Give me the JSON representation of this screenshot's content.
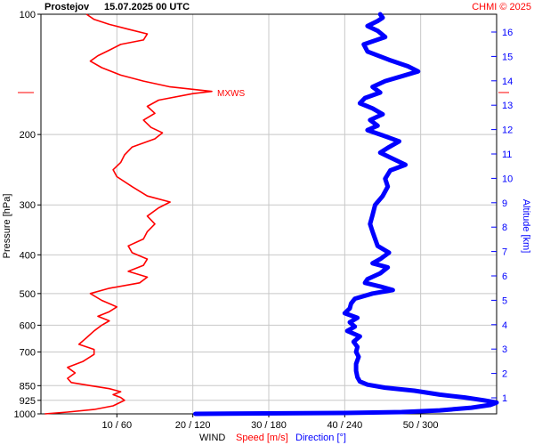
{
  "header": {
    "station": "Prostejov",
    "datetime": "15.07.2025 00 UTC",
    "credit": "CHMI © 2025"
  },
  "colors": {
    "speed": "#ff0000",
    "direction": "#0000ff",
    "grid": "#c8c8c8",
    "altitude_axis": "#0000ff"
  },
  "chart_data": {
    "type": "line",
    "grid": true,
    "y_axis": {
      "label": "Pressure [hPa]",
      "scale": "log",
      "range": [
        1000,
        100
      ],
      "ticks": [
        1000,
        925,
        850,
        700,
        600,
        500,
        400,
        300,
        200,
        100
      ]
    },
    "y2_axis": {
      "label": "Altitude [km]",
      "ticks": [
        1,
        2,
        3,
        4,
        5,
        6,
        7,
        8,
        9,
        10,
        11,
        12,
        13,
        14,
        15,
        16
      ]
    },
    "x_axis": {
      "title": "WIND",
      "speed_label": "Speed [m/s]",
      "direction_label": "Direction [°]",
      "speed_range": [
        0,
        60
      ],
      "direction_range": [
        0,
        360
      ],
      "tick_labels": [
        "10 / 60",
        "20 / 120",
        "30 / 180",
        "40 / 240",
        "50 / 300"
      ]
    },
    "annotations": [
      {
        "text": "MXWS",
        "pressure": 157,
        "speed": 22.5
      }
    ],
    "series": [
      {
        "name": "Speed [m/s]",
        "color": "#ff0000",
        "points": [
          [
            1000,
            0.5
          ],
          [
            990,
            3.5
          ],
          [
            975,
            7
          ],
          [
            955,
            9.5
          ],
          [
            935,
            10.5
          ],
          [
            925,
            11
          ],
          [
            910,
            10.5
          ],
          [
            895,
            9.5
          ],
          [
            880,
            10.5
          ],
          [
            865,
            9
          ],
          [
            850,
            6.5
          ],
          [
            835,
            4
          ],
          [
            815,
            3.5
          ],
          [
            790,
            4.5
          ],
          [
            765,
            3.5
          ],
          [
            740,
            5.5
          ],
          [
            710,
            7
          ],
          [
            690,
            7
          ],
          [
            670,
            5
          ],
          [
            645,
            6
          ],
          [
            620,
            7
          ],
          [
            600,
            8
          ],
          [
            585,
            9
          ],
          [
            570,
            7.5
          ],
          [
            555,
            9
          ],
          [
            540,
            10
          ],
          [
            520,
            8
          ],
          [
            500,
            6.5
          ],
          [
            485,
            9
          ],
          [
            470,
            13
          ],
          [
            455,
            14
          ],
          [
            440,
            11.5
          ],
          [
            425,
            13.5
          ],
          [
            410,
            14
          ],
          [
            395,
            12
          ],
          [
            380,
            11.5
          ],
          [
            365,
            13.5
          ],
          [
            350,
            14
          ],
          [
            335,
            15
          ],
          [
            320,
            14
          ],
          [
            305,
            15.5
          ],
          [
            295,
            17
          ],
          [
            285,
            14
          ],
          [
            270,
            12
          ],
          [
            255,
            10
          ],
          [
            245,
            9.5
          ],
          [
            235,
            10.5
          ],
          [
            225,
            11
          ],
          [
            215,
            12
          ],
          [
            205,
            15
          ],
          [
            198,
            16
          ],
          [
            192,
            14.5
          ],
          [
            184,
            13.5
          ],
          [
            177,
            15
          ],
          [
            170,
            14
          ],
          [
            164,
            15.5
          ],
          [
            158,
            20
          ],
          [
            156,
            22.5
          ],
          [
            152,
            17
          ],
          [
            147,
            13.5
          ],
          [
            142,
            10.5
          ],
          [
            136,
            8
          ],
          [
            131,
            6.5
          ],
          [
            127,
            7.5
          ],
          [
            123,
            9
          ],
          [
            119,
            10.5
          ],
          [
            116,
            13.5
          ],
          [
            112,
            14
          ],
          [
            109,
            11.5
          ],
          [
            106,
            9
          ],
          [
            103,
            7
          ],
          [
            100,
            6
          ]
        ]
      },
      {
        "name": "Direction [°]",
        "color": "#0000ff",
        "points": [
          [
            1000,
            122
          ],
          [
            995,
            240
          ],
          [
            990,
            285
          ],
          [
            980,
            315
          ],
          [
            965,
            340
          ],
          [
            950,
            355
          ],
          [
            937,
            360
          ],
          [
            925,
            350
          ],
          [
            910,
            335
          ],
          [
            895,
            315
          ],
          [
            875,
            295
          ],
          [
            860,
            272
          ],
          [
            845,
            258
          ],
          [
            830,
            252
          ],
          [
            810,
            250
          ],
          [
            780,
            249
          ],
          [
            750,
            249
          ],
          [
            720,
            251
          ],
          [
            700,
            249
          ],
          [
            680,
            250
          ],
          [
            660,
            247
          ],
          [
            640,
            252
          ],
          [
            620,
            242
          ],
          [
            605,
            248
          ],
          [
            590,
            244
          ],
          [
            575,
            250
          ],
          [
            560,
            240
          ],
          [
            545,
            244
          ],
          [
            530,
            245
          ],
          [
            515,
            248
          ],
          [
            500,
            262
          ],
          [
            490,
            278
          ],
          [
            480,
            268
          ],
          [
            470,
            256
          ],
          [
            460,
            258
          ],
          [
            445,
            268
          ],
          [
            430,
            274
          ],
          [
            420,
            262
          ],
          [
            410,
            268
          ],
          [
            395,
            275
          ],
          [
            380,
            266
          ],
          [
            365,
            264
          ],
          [
            350,
            262
          ],
          [
            335,
            260
          ],
          [
            318,
            262
          ],
          [
            300,
            264
          ],
          [
            285,
            270
          ],
          [
            270,
            274
          ],
          [
            258,
            272
          ],
          [
            246,
            276
          ],
          [
            238,
            288
          ],
          [
            230,
            278
          ],
          [
            222,
            268
          ],
          [
            215,
            275
          ],
          [
            208,
            283
          ],
          [
            201,
            270
          ],
          [
            195,
            258
          ],
          [
            190,
            266
          ],
          [
            184,
            260
          ],
          [
            178,
            270
          ],
          [
            172,
            262
          ],
          [
            167,
            252
          ],
          [
            162,
            256
          ],
          [
            157,
            268
          ],
          [
            152,
            262
          ],
          [
            147,
            272
          ],
          [
            143,
            285
          ],
          [
            139,
            298
          ],
          [
            135,
            290
          ],
          [
            130,
            275
          ],
          [
            124,
            258
          ],
          [
            119,
            255
          ],
          [
            114,
            272
          ],
          [
            110,
            266
          ],
          [
            107,
            258
          ],
          [
            104,
            266
          ],
          [
            102,
            270
          ],
          [
            100,
            268
          ]
        ]
      }
    ]
  }
}
